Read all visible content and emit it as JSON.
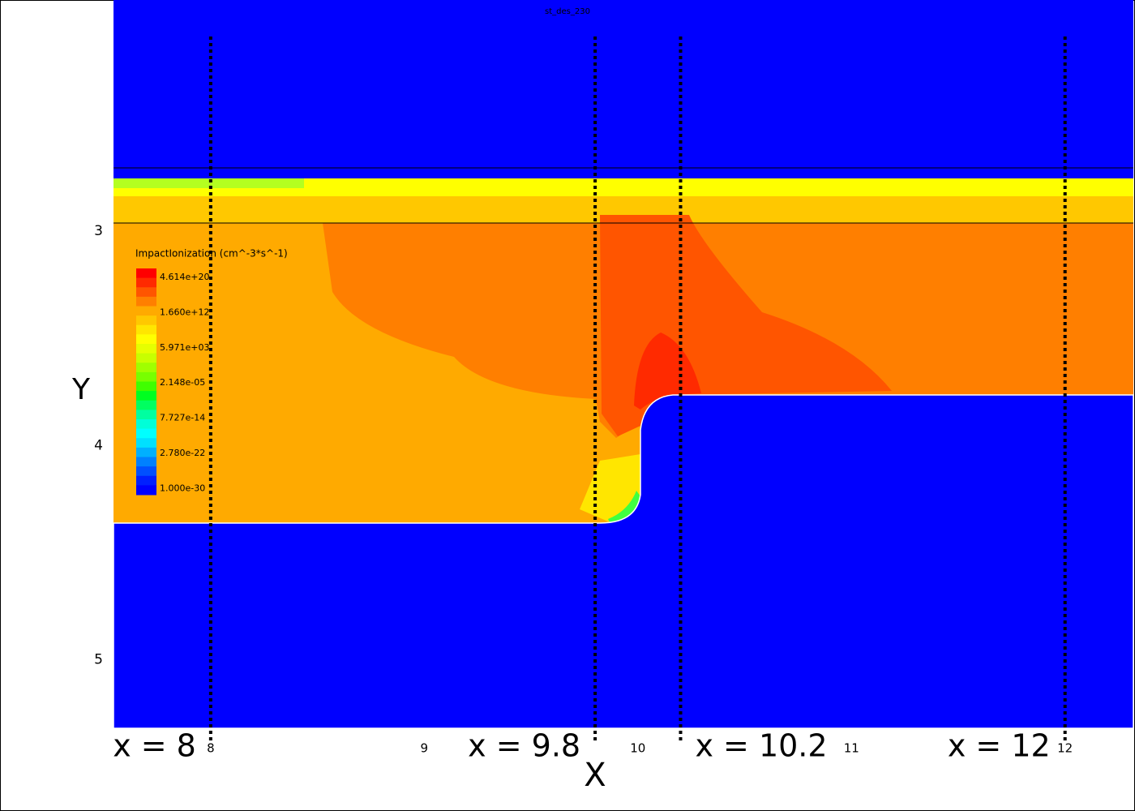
{
  "chart_data": {
    "type": "contour",
    "title": "st_des_230",
    "xlabel": "X",
    "ylabel": "Y",
    "xlim": [
      7.545,
      12.32
    ],
    "ylim": [
      1.92,
      5.32
    ],
    "xticks": [
      8,
      9,
      10,
      11,
      12
    ],
    "yticks": [
      3,
      4,
      5
    ],
    "colorbar": {
      "title": "ImpactIonization (cm^-3*s^-1)",
      "labels": [
        "4.614e+20",
        "1.660e+12",
        "5.971e+03",
        "2.148e-05",
        "7.727e-14",
        "2.780e-22",
        "1.000e-30"
      ]
    },
    "annotations": [
      {
        "x": 8,
        "label": "x = 8"
      },
      {
        "x": 9.8,
        "label": "x = 9.8"
      },
      {
        "x": 10.2,
        "label": "x = 10.2"
      },
      {
        "x": 12,
        "label": "x = 12"
      }
    ]
  }
}
